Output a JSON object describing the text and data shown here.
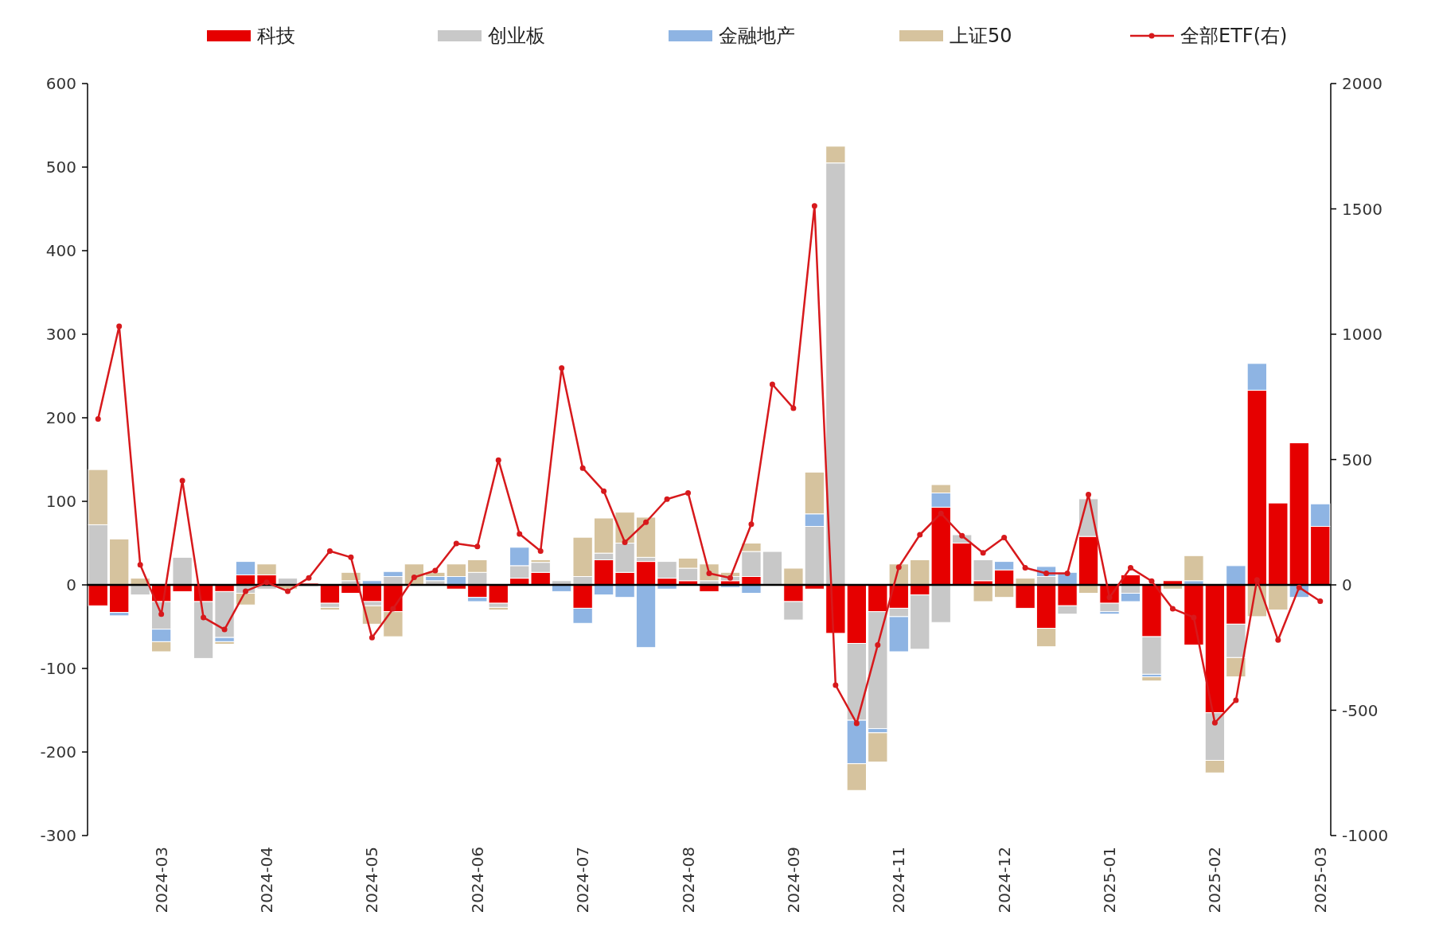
{
  "chart_data": {
    "type": "bar",
    "stacked": true,
    "legend": "top",
    "categories": [
      null,
      null,
      null,
      "2024-03",
      null,
      null,
      null,
      null,
      "2024-04",
      null,
      null,
      null,
      null,
      "2024-05",
      null,
      null,
      null,
      null,
      "2024-06",
      null,
      null,
      null,
      null,
      "2024-07",
      null,
      null,
      null,
      null,
      "2024-08",
      null,
      null,
      null,
      null,
      "2024-09",
      null,
      null,
      null,
      null,
      "2024-11",
      null,
      null,
      null,
      null,
      "2024-12",
      null,
      null,
      null,
      null,
      "2025-01",
      null,
      null,
      null,
      null,
      "2025-02",
      null,
      null,
      null,
      null,
      "2025-03"
    ],
    "ylim": [
      -300,
      600
    ],
    "yticks": [
      -300,
      -200,
      -100,
      0,
      100,
      200,
      300,
      400,
      500,
      600
    ],
    "y2lim": [
      -1000,
      2000
    ],
    "y2ticks": [
      -1000,
      -500,
      0,
      500,
      1000,
      1500,
      2000
    ],
    "series": [
      {
        "name": "科技",
        "color": "#e60000",
        "values": [
          -25,
          -33,
          0,
          -20,
          -8,
          -20,
          -8,
          12,
          12,
          0,
          2,
          -22,
          -10,
          -20,
          -32,
          0,
          0,
          -5,
          -15,
          -22,
          8,
          15,
          0,
          -28,
          30,
          15,
          28,
          8,
          5,
          -8,
          5,
          10,
          0,
          -20,
          -5,
          -58,
          -70,
          -32,
          -28,
          -12,
          93,
          50,
          5,
          18,
          -28,
          -52,
          -25,
          58,
          -22,
          12,
          -62,
          5,
          -72,
          -153,
          -47,
          233,
          98,
          170,
          70
        ]
      },
      {
        "name": "创业板",
        "color": "#c8c8c8",
        "values": [
          72,
          0,
          -12,
          -33,
          33,
          -68,
          -55,
          -10,
          -5,
          8,
          -2,
          -5,
          5,
          -5,
          10,
          0,
          5,
          0,
          15,
          -5,
          15,
          12,
          5,
          10,
          8,
          35,
          5,
          20,
          15,
          5,
          5,
          30,
          40,
          -22,
          70,
          505,
          -92,
          -140,
          -10,
          -65,
          -45,
          10,
          25,
          0,
          0,
          10,
          -10,
          45,
          -10,
          -10,
          -45,
          0,
          0,
          -57,
          -40,
          0,
          0,
          0,
          0
        ]
      },
      {
        "name": "金融地产",
        "color": "#8eb4e3",
        "values": [
          0,
          -4,
          0,
          -15,
          0,
          0,
          -5,
          16,
          0,
          0,
          0,
          0,
          0,
          5,
          6,
          0,
          5,
          10,
          -5,
          0,
          22,
          0,
          -8,
          -18,
          -12,
          -15,
          -75,
          -5,
          0,
          0,
          -3,
          -10,
          0,
          0,
          15,
          0,
          -52,
          -5,
          -42,
          0,
          17,
          0,
          0,
          10,
          0,
          12,
          15,
          0,
          -3,
          -10,
          -3,
          0,
          5,
          0,
          23,
          32,
          0,
          -15,
          27
        ]
      },
      {
        "name": "上证50",
        "color": "#d6c39e",
        "values": [
          66,
          55,
          8,
          -12,
          0,
          0,
          -3,
          -14,
          13,
          -5,
          0,
          -3,
          10,
          -22,
          -30,
          25,
          5,
          15,
          15,
          -3,
          0,
          3,
          0,
          47,
          42,
          37,
          48,
          0,
          12,
          20,
          5,
          10,
          0,
          20,
          50,
          20,
          -32,
          -35,
          25,
          30,
          10,
          0,
          -20,
          -15,
          8,
          -22,
          0,
          -10,
          0,
          0,
          -5,
          -5,
          30,
          -15,
          -23,
          -38,
          -30,
          0,
          0
        ]
      },
      {
        "name": "全部ETF(右)",
        "type": "line",
        "axis": "y2",
        "color": "#d7191c",
        "marker": "circle",
        "values": [
          662,
          1032,
          80,
          -117,
          416,
          -130,
          -178,
          -25,
          10,
          -25,
          28,
          135,
          110,
          -210,
          -95,
          30,
          57,
          165,
          153,
          498,
          203,
          135,
          865,
          466,
          374,
          170,
          250,
          342,
          367,
          46,
          28,
          242,
          800,
          705,
          1512,
          -400,
          -552,
          -240,
          71,
          200,
          285,
          196,
          128,
          189,
          68,
          46,
          46,
          360,
          -50,
          68,
          15,
          -95,
          -130,
          -550,
          -460,
          20,
          -220,
          -10,
          -65
        ]
      }
    ]
  }
}
